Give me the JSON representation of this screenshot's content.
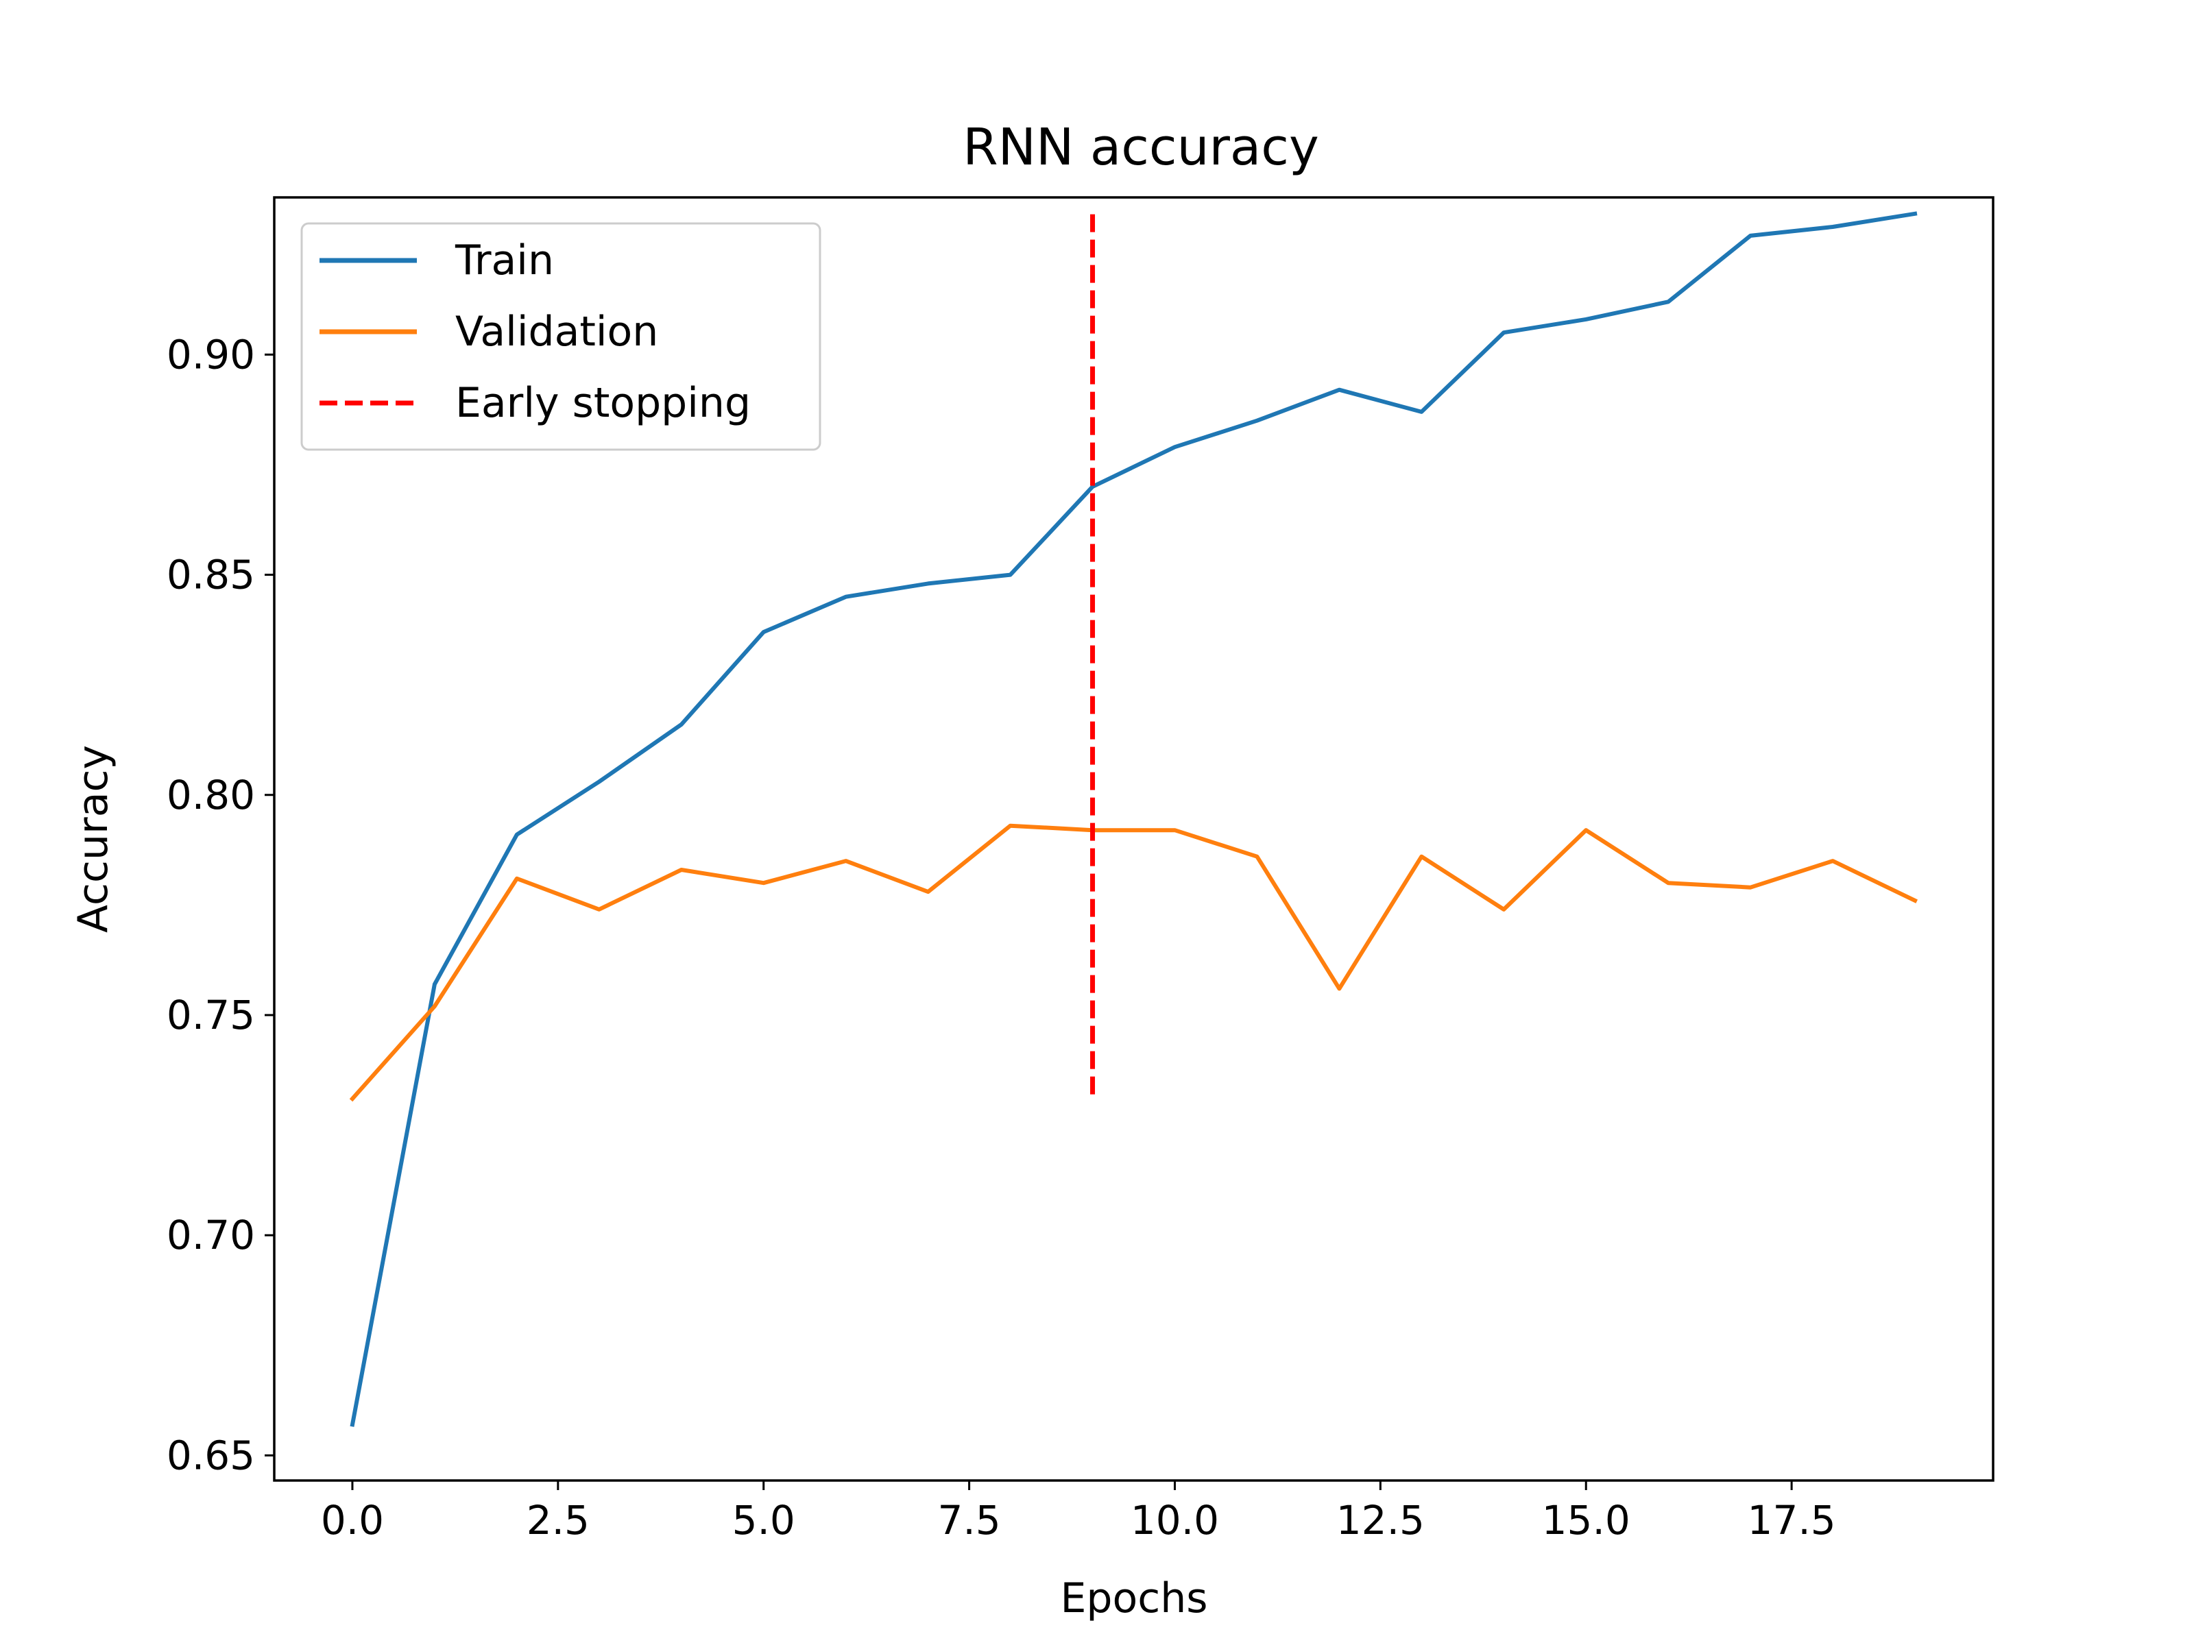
{
  "chart_data": {
    "type": "line",
    "title": "RNN accuracy",
    "xlabel": "Epochs",
    "ylabel": "Accuracy",
    "xlim": [
      -0.95,
      19.95
    ],
    "ylim": [
      0.6443,
      0.9357
    ],
    "xticks": [
      0.0,
      2.5,
      5.0,
      7.5,
      10.0,
      12.5,
      15.0,
      17.5
    ],
    "xtick_labels": [
      "0.0",
      "2.5",
      "5.0",
      "7.5",
      "10.0",
      "12.5",
      "15.0",
      "17.5"
    ],
    "yticks": [
      0.65,
      0.7,
      0.75,
      0.8,
      0.85,
      0.9
    ],
    "ytick_labels": [
      "0.65",
      "0.70",
      "0.75",
      "0.80",
      "0.85",
      "0.90"
    ],
    "grid": false,
    "legend_position": "top-left",
    "x": [
      0,
      1,
      2,
      3,
      4,
      5,
      6,
      7,
      8,
      9,
      10,
      11,
      12,
      13,
      14,
      15,
      16,
      17,
      18,
      19
    ],
    "series": [
      {
        "name": "Train",
        "color": "#1f77b4",
        "style": "solid",
        "values": [
          0.657,
          0.757,
          0.791,
          0.803,
          0.816,
          0.837,
          0.845,
          0.848,
          0.85,
          0.87,
          0.879,
          0.885,
          0.892,
          0.887,
          0.905,
          0.908,
          0.912,
          0.927,
          0.929,
          0.932
        ]
      },
      {
        "name": "Validation",
        "color": "#ff7f0e",
        "style": "solid",
        "values": [
          0.731,
          0.752,
          0.781,
          0.774,
          0.783,
          0.78,
          0.785,
          0.778,
          0.793,
          0.792,
          0.792,
          0.786,
          0.756,
          0.786,
          0.774,
          0.792,
          0.78,
          0.779,
          0.785,
          0.776
        ]
      }
    ],
    "vlines": [
      {
        "name": "Early stopping",
        "color": "#ff0000",
        "style": "dashed",
        "x": 9,
        "y_range": [
          0.732,
          0.932
        ]
      }
    ]
  }
}
